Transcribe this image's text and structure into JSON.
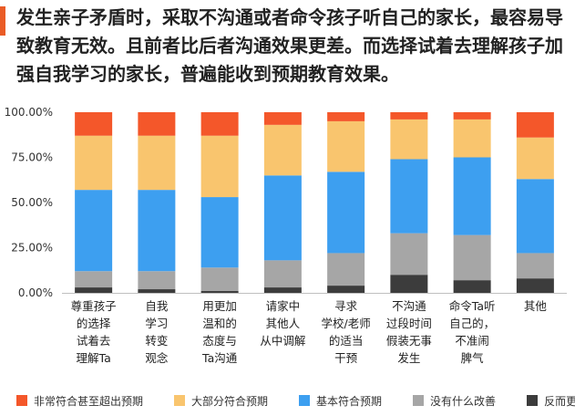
{
  "headline": "发生亲子矛盾时，采取不沟通或者命令孩子听自己的家长，最容易导致教育无效。且前者比后者沟通效果更差。而选择试着去理解孩子加强自我学习的家长，普遍能收到预期教育效果。",
  "accent_color": "#ea5c26",
  "chart_data": {
    "type": "bar",
    "stacked": true,
    "categories": [
      [
        "尊重孩子",
        "的选择",
        "试着去",
        "理解Ta"
      ],
      [
        "自我",
        "学习",
        "转变",
        "观念"
      ],
      [
        "用更加",
        "温和的",
        "态度与",
        "Ta沟通"
      ],
      [
        "请家中",
        "其他人",
        "从中调解"
      ],
      [
        "寻求",
        "学校/老师",
        "的适当",
        "干预"
      ],
      [
        "不沟通",
        "过段时间",
        "假装无事",
        "发生"
      ],
      [
        "命令Ta听",
        "自己的，",
        "不准闹",
        "脾气"
      ],
      [
        "其他"
      ]
    ],
    "series": [
      {
        "name": "反而更差",
        "color": "#3c3c3c",
        "values": [
          3,
          2,
          1,
          3,
          4,
          10,
          7,
          8
        ]
      },
      {
        "name": "没有什么改善",
        "color": "#a6a6a6",
        "values": [
          9,
          10,
          13,
          15,
          18,
          23,
          25,
          14
        ]
      },
      {
        "name": "基本符合预期",
        "color": "#3d9ff0",
        "values": [
          45,
          45,
          39,
          47,
          45,
          41,
          43,
          41
        ]
      },
      {
        "name": "大部分符合预期",
        "color": "#f9c56e",
        "values": [
          30,
          30,
          34,
          28,
          28,
          22,
          21,
          23
        ]
      },
      {
        "name": "非常符合甚至超出预期",
        "color": "#f4572a",
        "values": [
          13,
          13,
          13,
          7,
          5,
          4,
          4,
          14
        ]
      }
    ],
    "legend_order": [
      "非常符合甚至超出预期",
      "大部分符合预期",
      "基本符合预期",
      "没有什么改善",
      "反而更差"
    ],
    "yticks": [
      "0.00%",
      "25.00%",
      "50.00%",
      "75.00%",
      "100.00%"
    ],
    "ylim": [
      0,
      100
    ],
    "grid": false,
    "legend_position": "bottom"
  }
}
